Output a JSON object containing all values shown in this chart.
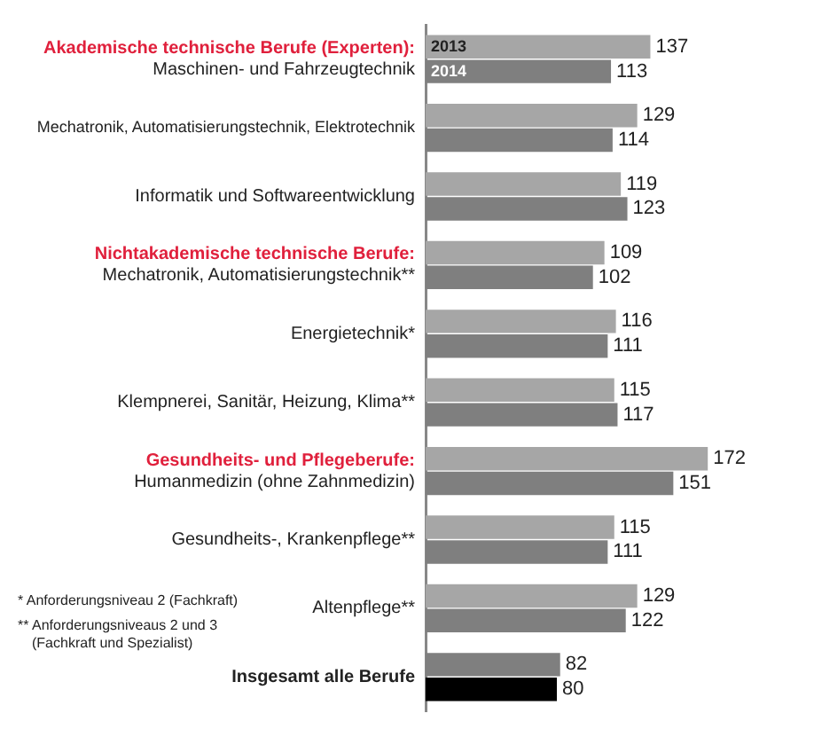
{
  "chart_data": {
    "type": "bar",
    "orientation": "horizontal",
    "data_labels": true,
    "legend": false,
    "categories": [
      "Akademische technische Berufe (Experten):\nMaschinen- und Fahrzeugtechnik",
      "Mechatronik, Automatisierungstechnik, Elektrotechnik",
      "Informatik und Softwareentwicklung",
      "Nichtakademische technische Berufe:\nMechatronik, Automatisierungstechnik**",
      "Energietechnik*",
      "Klempnerei, Sanitär, Heizung, Klima**",
      "Gesundheits- und Pflegeberufe:\nHumanmedizin (ohne Zahnmedizin)",
      "Gesundheits-, Krankenpflege**",
      "Altenpflege**",
      "Insgesamt alle Berufe"
    ],
    "series": [
      {
        "name": "2013",
        "color": "#a6a6a6",
        "colors": [
          null,
          null,
          null,
          null,
          null,
          null,
          null,
          null,
          null,
          "#7f7f7f"
        ],
        "values": [
          137,
          129,
          119,
          109,
          116,
          115,
          172,
          115,
          129,
          82
        ]
      },
      {
        "name": "2014",
        "color": "#7f7f7f",
        "colors": [
          null,
          null,
          null,
          null,
          null,
          null,
          null,
          null,
          null,
          "#000000"
        ],
        "values": [
          113,
          114,
          123,
          102,
          111,
          117,
          151,
          111,
          122,
          80
        ]
      }
    ],
    "annotations": [
      "* Anforderungsniveau 2 (Fachkraft)",
      "** Anforderungsniveaus 2 und 3\n(Fachkraft und Spezialist)"
    ]
  }
}
